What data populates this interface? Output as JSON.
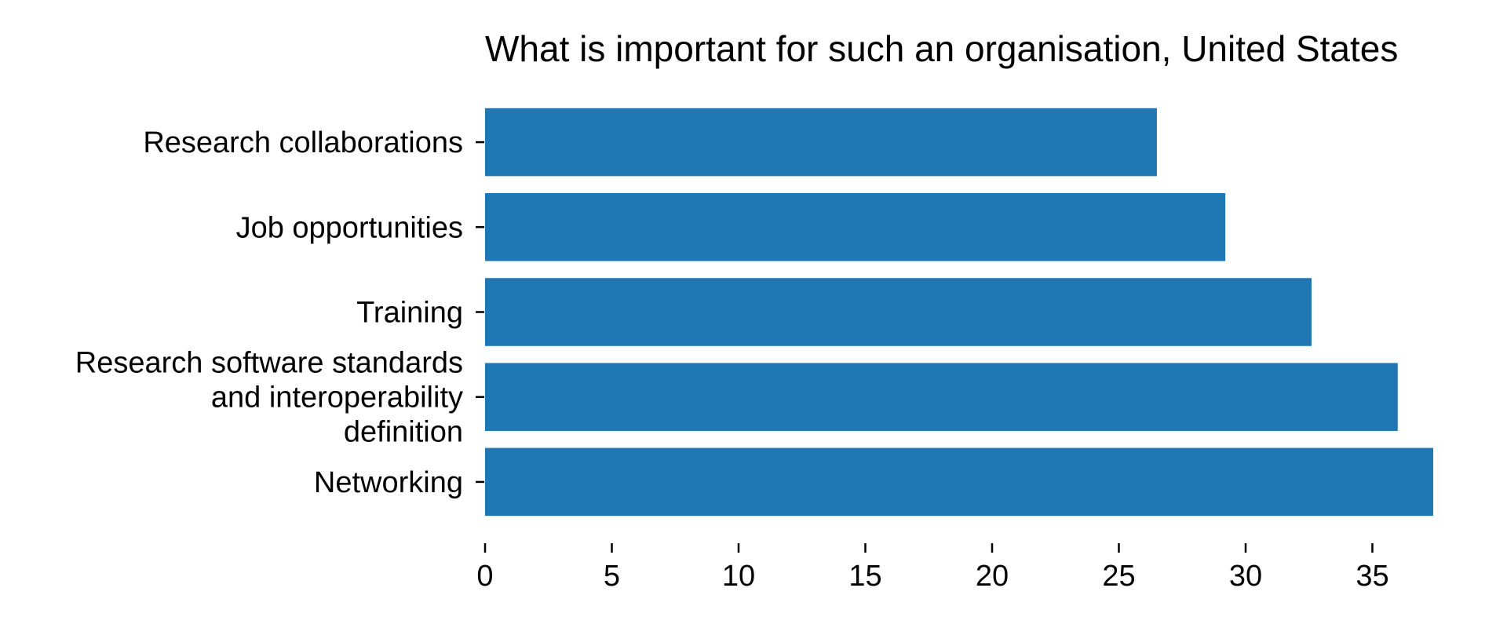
{
  "chart_data": {
    "type": "bar",
    "orientation": "horizontal",
    "title": "What is important for such an organisation, United States",
    "xlabel": "",
    "ylabel": "",
    "categories": [
      "Research collaborations",
      "Job opportunities",
      "Training",
      "Research software standards and interoperability definition",
      "Networking"
    ],
    "category_lines": [
      [
        "Research collaborations"
      ],
      [
        "Job opportunities"
      ],
      [
        "Training"
      ],
      [
        "Research software standards",
        "and interoperability",
        "definition"
      ],
      [
        "Networking"
      ]
    ],
    "values": [
      26.5,
      29.2,
      32.6,
      36.0,
      37.4
    ],
    "xlim": [
      0,
      37.4
    ],
    "xticks": [
      0,
      5,
      10,
      15,
      20,
      25,
      30,
      35
    ],
    "xtick_labels": [
      "0",
      "5",
      "10",
      "15",
      "20",
      "25",
      "30",
      "35"
    ],
    "grid": false,
    "legend": "none",
    "bar_color": "#1f77b4"
  }
}
